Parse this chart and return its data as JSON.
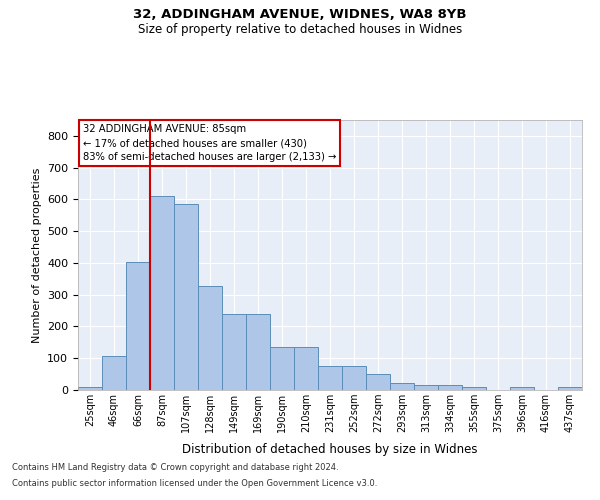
{
  "title1": "32, ADDINGHAM AVENUE, WIDNES, WA8 8YB",
  "title2": "Size of property relative to detached houses in Widnes",
  "xlabel": "Distribution of detached houses by size in Widnes",
  "ylabel": "Number of detached properties",
  "footnote1": "Contains HM Land Registry data © Crown copyright and database right 2024.",
  "footnote2": "Contains public sector information licensed under the Open Government Licence v3.0.",
  "bar_labels": [
    "25sqm",
    "46sqm",
    "66sqm",
    "87sqm",
    "107sqm",
    "128sqm",
    "149sqm",
    "169sqm",
    "190sqm",
    "210sqm",
    "231sqm",
    "252sqm",
    "272sqm",
    "293sqm",
    "313sqm",
    "334sqm",
    "355sqm",
    "375sqm",
    "396sqm",
    "416sqm",
    "437sqm"
  ],
  "bar_values": [
    8,
    106,
    403,
    611,
    585,
    328,
    238,
    238,
    134,
    134,
    76,
    76,
    49,
    21,
    15,
    15,
    8,
    0,
    8,
    0,
    8
  ],
  "bar_color": "#aec6e8",
  "bar_edge_color": "#5b8db8",
  "vline_color": "#cc0000",
  "annotation_text": "32 ADDINGHAM AVENUE: 85sqm\n← 17% of detached houses are smaller (430)\n83% of semi-detached houses are larger (2,133) →",
  "annotation_box_color": "#ffffff",
  "annotation_box_edge": "#cc0000",
  "ylim": [
    0,
    850
  ],
  "yticks": [
    0,
    100,
    200,
    300,
    400,
    500,
    600,
    700,
    800
  ],
  "bg_color": "#e8eef7",
  "fig_bg_color": "#ffffff",
  "grid_color": "#ffffff"
}
